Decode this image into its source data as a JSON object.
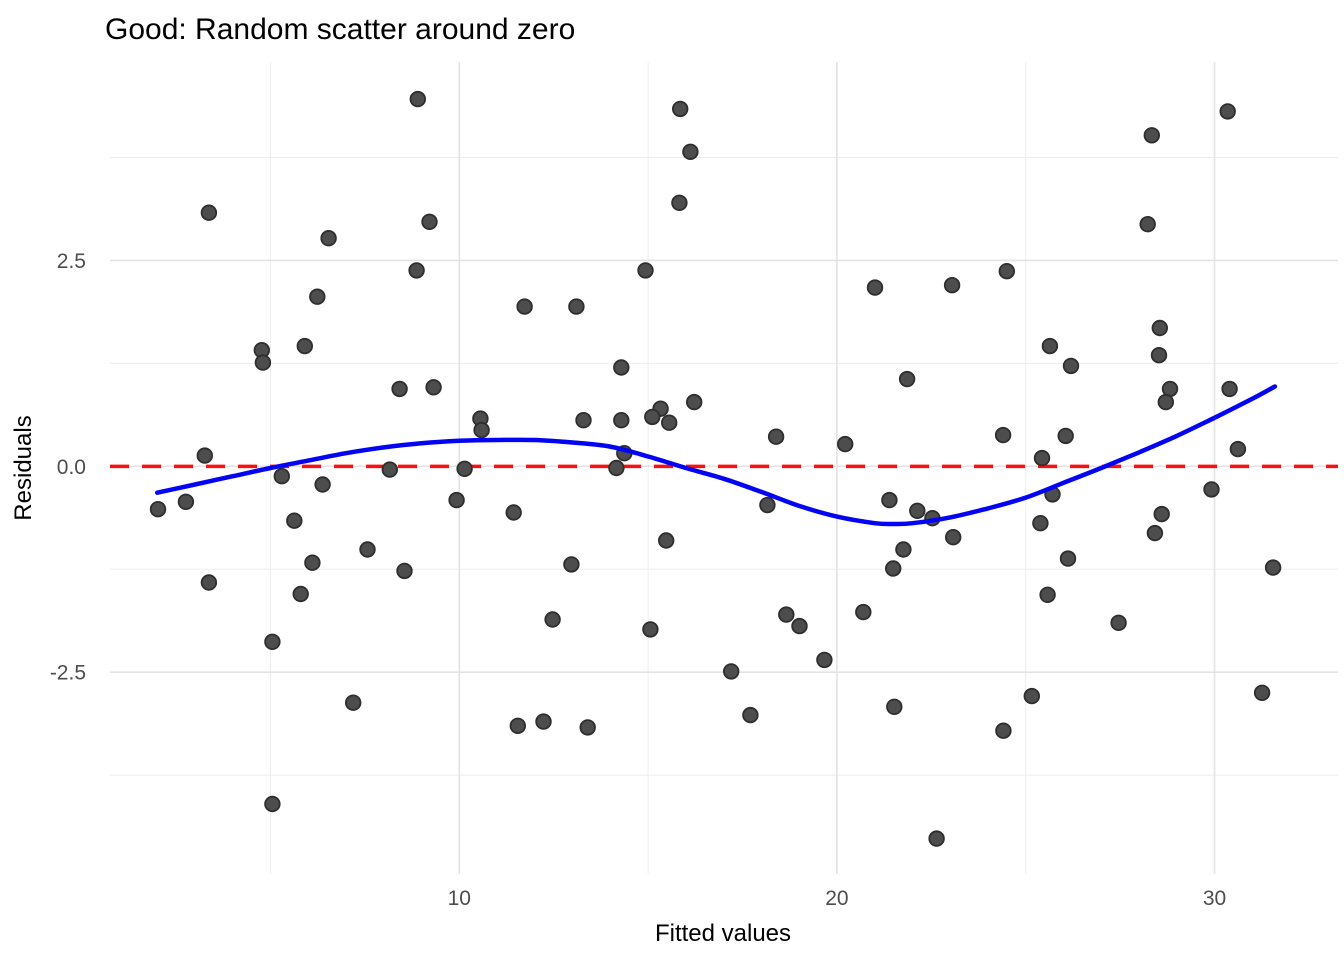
{
  "title": "Good: Random scatter around zero",
  "colors": {
    "background": "#ffffff",
    "grid_major": "#e3e3e3",
    "grid_minor": "#ededed",
    "point_fill": "#4d4d4d",
    "point_stroke": "#2e2e2e",
    "zero_line": "#fb0f0f",
    "smooth_line": "#0404f5",
    "tick_text": "#4d4d4d",
    "title_text": "#000000"
  },
  "chart_data": {
    "type": "scatter",
    "title": "Good: Random scatter around zero",
    "xlabel": "Fitted values",
    "ylabel": "Residuals",
    "x_domain": [
      0.75,
      33.27
    ],
    "y_domain": [
      -4.95,
      4.91
    ],
    "x_ticks": [
      {
        "value": 10,
        "label": "10"
      },
      {
        "value": 20,
        "label": "20"
      },
      {
        "value": 30,
        "label": "30"
      }
    ],
    "y_ticks": [
      {
        "value": 2.5,
        "label": "2.5"
      },
      {
        "value": 0.0,
        "label": "0.0"
      },
      {
        "value": -2.5,
        "label": "-2.5"
      }
    ],
    "x_minor_gridlines": [
      5,
      15,
      25
    ],
    "y_minor_gridlines": [
      3.75,
      1.25,
      -1.25,
      -3.75
    ],
    "grid": true,
    "legend_position": "none",
    "zero_line_y": 0,
    "points": [
      [
        8.9,
        4.46
      ],
      [
        3.37,
        3.08
      ],
      [
        6.54,
        2.77
      ],
      [
        9.21,
        2.97
      ],
      [
        8.87,
        2.38
      ],
      [
        6.24,
        2.06
      ],
      [
        4.77,
        1.41
      ],
      [
        5.91,
        1.46
      ],
      [
        4.8,
        1.26
      ],
      [
        8.42,
        0.94
      ],
      [
        9.32,
        0.96
      ],
      [
        10.56,
        0.58
      ],
      [
        10.59,
        0.44
      ],
      [
        3.26,
        0.13
      ],
      [
        8.16,
        -0.04
      ],
      [
        10.14,
        -0.03
      ],
      [
        15.85,
        4.34
      ],
      [
        16.12,
        3.82
      ],
      [
        15.83,
        3.2
      ],
      [
        14.93,
        2.38
      ],
      [
        21.01,
        2.17
      ],
      [
        11.73,
        1.94
      ],
      [
        13.1,
        1.94
      ],
      [
        14.29,
        1.2
      ],
      [
        21.86,
        1.06
      ],
      [
        16.22,
        0.78
      ],
      [
        15.33,
        0.7
      ],
      [
        15.11,
        0.6
      ],
      [
        15.56,
        0.53
      ],
      [
        13.29,
        0.56
      ],
      [
        14.29,
        0.56
      ],
      [
        18.39,
        0.36
      ],
      [
        20.22,
        0.27
      ],
      [
        14.37,
        0.16
      ],
      [
        14.16,
        -0.02
      ],
      [
        30.35,
        4.31
      ],
      [
        28.34,
        4.02
      ],
      [
        28.23,
        2.94
      ],
      [
        24.5,
        2.37
      ],
      [
        23.05,
        2.2
      ],
      [
        28.55,
        1.68
      ],
      [
        25.64,
        1.46
      ],
      [
        28.53,
        1.35
      ],
      [
        26.2,
        1.22
      ],
      [
        28.82,
        0.94
      ],
      [
        28.71,
        0.78
      ],
      [
        30.4,
        0.94
      ],
      [
        24.4,
        0.38
      ],
      [
        26.06,
        0.37
      ],
      [
        30.62,
        0.21
      ],
      [
        25.43,
        0.1
      ],
      [
        5.3,
        -0.12
      ],
      [
        6.38,
        -0.22
      ],
      [
        2.02,
        -0.52
      ],
      [
        2.76,
        -0.43
      ],
      [
        5.63,
        -0.66
      ],
      [
        7.57,
        -1.01
      ],
      [
        6.11,
        -1.17
      ],
      [
        8.55,
        -1.27
      ],
      [
        3.37,
        -1.41
      ],
      [
        5.8,
        -1.55
      ],
      [
        5.05,
        -2.13
      ],
      [
        7.19,
        -2.87
      ],
      [
        5.05,
        -4.1
      ],
      [
        9.93,
        -0.41
      ],
      [
        11.44,
        -0.56
      ],
      [
        18.16,
        -0.47
      ],
      [
        21.39,
        -0.41
      ],
      [
        12.97,
        -1.19
      ],
      [
        21.76,
        -1.01
      ],
      [
        21.49,
        -1.24
      ],
      [
        12.47,
        -1.86
      ],
      [
        15.06,
        -1.98
      ],
      [
        18.66,
        -1.8
      ],
      [
        19.01,
        -1.94
      ],
      [
        20.7,
        -1.77
      ],
      [
        19.67,
        -2.35
      ],
      [
        17.2,
        -2.49
      ],
      [
        12.23,
        -3.1
      ],
      [
        11.55,
        -3.15
      ],
      [
        13.4,
        -3.17
      ],
      [
        17.71,
        -3.02
      ],
      [
        21.52,
        -2.92
      ],
      [
        15.48,
        -0.9
      ],
      [
        22.13,
        -0.54
      ],
      [
        22.53,
        -0.63
      ],
      [
        23.08,
        -0.86
      ],
      [
        25.71,
        -0.34
      ],
      [
        25.39,
        -0.69
      ],
      [
        29.92,
        -0.28
      ],
      [
        28.6,
        -0.58
      ],
      [
        28.42,
        -0.81
      ],
      [
        26.12,
        -1.12
      ],
      [
        31.55,
        -1.23
      ],
      [
        25.58,
        -1.56
      ],
      [
        27.46,
        -1.9
      ],
      [
        25.16,
        -2.79
      ],
      [
        31.26,
        -2.75
      ],
      [
        24.41,
        -3.21
      ],
      [
        22.64,
        -4.52
      ]
    ],
    "smooth_curve": [
      [
        2.0,
        -0.32
      ],
      [
        3.0,
        -0.22
      ],
      [
        4.0,
        -0.12
      ],
      [
        5.0,
        -0.02
      ],
      [
        6.0,
        0.07
      ],
      [
        7.0,
        0.16
      ],
      [
        8.0,
        0.23
      ],
      [
        9.0,
        0.28
      ],
      [
        10.0,
        0.31
      ],
      [
        11.0,
        0.32
      ],
      [
        12.0,
        0.32
      ],
      [
        13.0,
        0.29
      ],
      [
        14.0,
        0.24
      ],
      [
        15.0,
        0.12
      ],
      [
        16.0,
        -0.02
      ],
      [
        17.0,
        -0.15
      ],
      [
        18.0,
        -0.31
      ],
      [
        19.0,
        -0.48
      ],
      [
        20.0,
        -0.61
      ],
      [
        21.0,
        -0.69
      ],
      [
        21.5,
        -0.7
      ],
      [
        22.0,
        -0.69
      ],
      [
        23.0,
        -0.62
      ],
      [
        24.0,
        -0.51
      ],
      [
        25.0,
        -0.38
      ],
      [
        26.0,
        -0.2
      ],
      [
        27.0,
        -0.02
      ],
      [
        28.0,
        0.17
      ],
      [
        29.0,
        0.37
      ],
      [
        30.0,
        0.59
      ],
      [
        31.0,
        0.82
      ],
      [
        31.6,
        0.97
      ]
    ]
  }
}
